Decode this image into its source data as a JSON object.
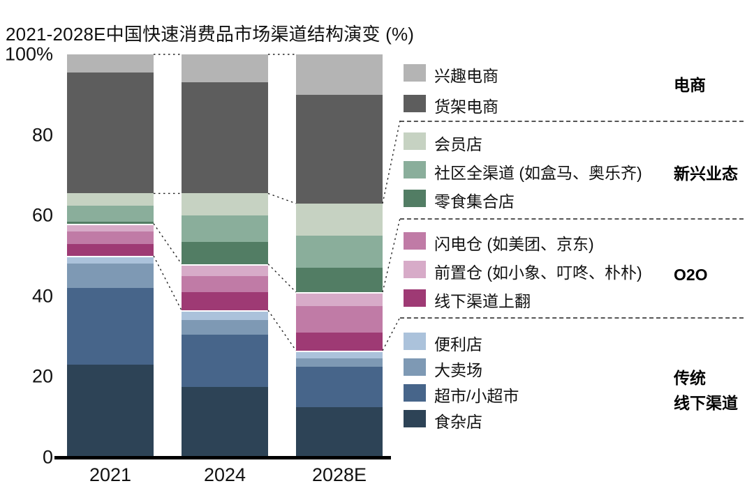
{
  "title": "2021-2028E中国快速消费品市场渠道结构演变 (%)",
  "chart_data": {
    "type": "stacked-bar-100",
    "unit": "%",
    "title": "2021-2028E中国快速消费品市场渠道结构演变 (%)",
    "categories": [
      "2021",
      "2024",
      "2028E"
    ],
    "y_ticks": [
      "100%",
      "80",
      "60",
      "40",
      "20",
      "0"
    ],
    "ylim": [
      0,
      100
    ],
    "grid": false,
    "legend_position": "right",
    "series": [
      {
        "name": "兴趣电商",
        "group": "电商",
        "color": "#b4b4b4",
        "values": [
          4.5,
          7,
          10
        ]
      },
      {
        "name": "货架电商",
        "group": "电商",
        "color": "#5d5d5d",
        "values": [
          30,
          27.5,
          27
        ]
      },
      {
        "name": "会员店",
        "group": "新兴业态",
        "color": "#c6d2c2",
        "values": [
          3,
          5.5,
          8
        ]
      },
      {
        "name": "社区全渠道 (如盒马、奥乐齐)",
        "group": "新兴业态",
        "color": "#8aae9b",
        "values": [
          4,
          6.5,
          8
        ]
      },
      {
        "name": "零食集合店",
        "group": "新兴业态",
        "color": "#527d64",
        "values": [
          0.5,
          5.5,
          6
        ]
      },
      {
        "name": "闪电仓 (如美团、京东)",
        "group": "O2O",
        "color": "#c07ba6",
        "values": [
          3,
          4,
          6.5
        ]
      },
      {
        "name": "前置仓 (如小象、叮咚、朴朴)",
        "group": "O2O",
        "color": "#d7abc8",
        "values": [
          2,
          3,
          3.5
        ]
      },
      {
        "name": "线下渠道上翻",
        "group": "O2O",
        "color": "#9e3a74",
        "values": [
          3,
          4.5,
          4.5
        ]
      },
      {
        "name": "便利店",
        "group": "传统线下渠道",
        "color": "#abc2db",
        "values": [
          2,
          2.5,
          2
        ]
      },
      {
        "name": "大卖场",
        "group": "传统线下渠道",
        "color": "#7e99b4",
        "values": [
          6,
          3.5,
          2
        ]
      },
      {
        "name": "超市/小超市",
        "group": "传统线下渠道",
        "color": "#47658a",
        "values": [
          19,
          13,
          10
        ]
      },
      {
        "name": "食杂店",
        "group": "传统线下渠道",
        "color": "#2d4356",
        "values": [
          23,
          17.5,
          12.5
        ]
      }
    ],
    "stack_top_to_bottom": [
      "兴趣电商",
      "货架电商",
      "会员店",
      "社区全渠道 (如盒马、奥乐齐)",
      "零食集合店",
      "前置仓 (如小象、叮咚、朴朴)",
      "闪电仓 (如美团、京东)",
      "线下渠道上翻",
      "便利店",
      "大卖场",
      "超市/小超市",
      "食杂店"
    ],
    "legend_groups": [
      {
        "label": "电商",
        "items": [
          "兴趣电商",
          "货架电商"
        ]
      },
      {
        "label": "新兴业态",
        "items": [
          "会员店",
          "社区全渠道 (如盒马、奥乐齐)",
          "零食集合店"
        ]
      },
      {
        "label": "O2O",
        "items": [
          "闪电仓 (如美团、京东)",
          "前置仓 (如小象、叮咚、朴朴)",
          "线下渠道上翻"
        ]
      },
      {
        "label": "传统\n线下渠道",
        "items": [
          "便利店",
          "大卖场",
          "超市/小超市",
          "食杂店"
        ]
      }
    ]
  }
}
